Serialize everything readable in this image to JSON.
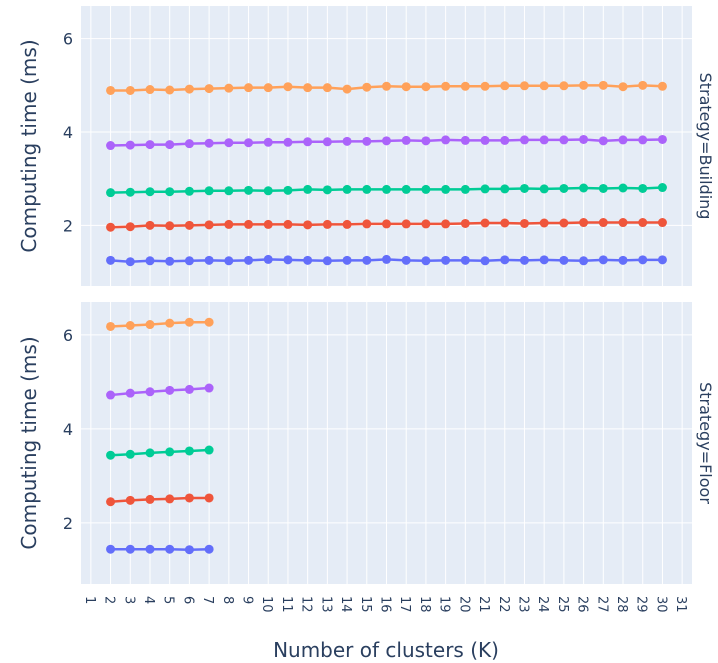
{
  "chart_data": {
    "type": "line",
    "xlabel": "Number of clusters (K)",
    "ylabel": "Computing time (ms)",
    "x_categories": [
      "1",
      "2",
      "3",
      "4",
      "5",
      "6",
      "7",
      "8",
      "9",
      "10",
      "11",
      "12",
      "13",
      "14",
      "15",
      "16",
      "17",
      "18",
      "19",
      "20",
      "21",
      "22",
      "23",
      "24",
      "25",
      "26",
      "27",
      "28",
      "29",
      "30",
      "31"
    ],
    "y_ticks": [
      2,
      4,
      6
    ],
    "colors": [
      "#636efa",
      "#ef553b",
      "#00cc96",
      "#ab63fa",
      "#ffa15a"
    ],
    "panels": [
      {
        "facet_label": "Strategy=Building",
        "ylim": [
          0.7,
          6.7
        ],
        "x": [
          2,
          3,
          4,
          5,
          6,
          7,
          8,
          9,
          10,
          11,
          12,
          13,
          14,
          15,
          16,
          17,
          18,
          19,
          20,
          21,
          22,
          23,
          24,
          25,
          26,
          27,
          28,
          29,
          30
        ],
        "series": [
          {
            "values": [
              1.25,
              1.22,
              1.24,
              1.23,
              1.24,
              1.25,
              1.24,
              1.25,
              1.27,
              1.26,
              1.25,
              1.24,
              1.25,
              1.25,
              1.27,
              1.25,
              1.24,
              1.25,
              1.25,
              1.24,
              1.26,
              1.25,
              1.26,
              1.25,
              1.24,
              1.26,
              1.25,
              1.26,
              1.26
            ]
          },
          {
            "values": [
              1.96,
              1.97,
              2.0,
              1.99,
              2.0,
              2.01,
              2.02,
              2.02,
              2.02,
              2.02,
              2.01,
              2.02,
              2.02,
              2.03,
              2.03,
              2.03,
              2.03,
              2.03,
              2.04,
              2.05,
              2.05,
              2.04,
              2.05,
              2.05,
              2.06,
              2.06,
              2.06,
              2.06,
              2.06
            ]
          },
          {
            "values": [
              2.7,
              2.71,
              2.72,
              2.72,
              2.73,
              2.74,
              2.74,
              2.75,
              2.74,
              2.75,
              2.77,
              2.76,
              2.77,
              2.77,
              2.77,
              2.77,
              2.77,
              2.77,
              2.77,
              2.78,
              2.78,
              2.79,
              2.78,
              2.79,
              2.8,
              2.79,
              2.8,
              2.79,
              2.81
            ]
          },
          {
            "values": [
              3.71,
              3.72,
              3.73,
              3.73,
              3.75,
              3.76,
              3.77,
              3.77,
              3.78,
              3.78,
              3.79,
              3.79,
              3.8,
              3.8,
              3.81,
              3.82,
              3.81,
              3.83,
              3.82,
              3.82,
              3.82,
              3.83,
              3.83,
              3.83,
              3.84,
              3.81,
              3.83,
              3.83,
              3.84
            ]
          },
          {
            "values": [
              4.89,
              4.89,
              4.91,
              4.9,
              4.92,
              4.93,
              4.94,
              4.95,
              4.95,
              4.97,
              4.95,
              4.95,
              4.92,
              4.96,
              4.98,
              4.97,
              4.97,
              4.98,
              4.98,
              4.98,
              4.99,
              4.99,
              4.99,
              4.99,
              5.0,
              5.0,
              4.97,
              5.0,
              4.98
            ]
          }
        ]
      },
      {
        "facet_label": "Strategy=Floor",
        "ylim": [
          0.7,
          6.7
        ],
        "x": [
          2,
          3,
          4,
          5,
          6,
          7
        ],
        "series": [
          {
            "values": [
              1.44,
              1.44,
              1.44,
              1.44,
              1.43,
              1.44
            ]
          },
          {
            "values": [
              2.45,
              2.48,
              2.5,
              2.51,
              2.53,
              2.53
            ]
          },
          {
            "values": [
              3.44,
              3.46,
              3.49,
              3.51,
              3.53,
              3.55
            ]
          },
          {
            "values": [
              4.72,
              4.76,
              4.79,
              4.82,
              4.84,
              4.87
            ]
          },
          {
            "values": [
              6.18,
              6.2,
              6.22,
              6.25,
              6.27,
              6.27
            ]
          }
        ]
      }
    ]
  }
}
